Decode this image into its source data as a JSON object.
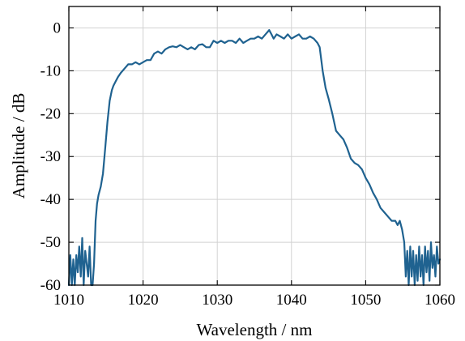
{
  "chart_data": {
    "type": "line",
    "title": "",
    "xlabel": "Wavelength / nm",
    "ylabel": "Amplitude / dB",
    "xlim": [
      1010,
      1060
    ],
    "ylim": [
      -60,
      5
    ],
    "xticks": [
      1010,
      1020,
      1030,
      1040,
      1050,
      1060
    ],
    "yticks": [
      0,
      -10,
      -20,
      -30,
      -40,
      -50,
      -60
    ],
    "xtick_labels": [
      "1010",
      "1020",
      "1030",
      "1040",
      "1050",
      "1060"
    ],
    "ytick_labels": [
      "0",
      "-10",
      "-20",
      "-30",
      "-40",
      "-50",
      "-60"
    ],
    "grid": true,
    "legend": "none",
    "colors": {
      "series": "#1f6290",
      "grid": "#d2d2d2",
      "axes": "#000000"
    },
    "series": [
      {
        "x": [
          1010.0,
          1010.2,
          1010.4,
          1010.6,
          1010.8,
          1011.0,
          1011.2,
          1011.4,
          1011.6,
          1011.8,
          1012.0,
          1012.2,
          1012.4,
          1012.6,
          1012.8,
          1013.0,
          1013.2,
          1013.4,
          1013.6,
          1013.8,
          1014.0,
          1014.3,
          1014.6,
          1014.9,
          1015.2,
          1015.5,
          1015.8,
          1016.0,
          1016.3,
          1016.6,
          1017.0,
          1017.5,
          1018.0,
          1018.5,
          1019.0,
          1019.5,
          1020.0,
          1020.5,
          1021.0,
          1021.5,
          1022.0,
          1022.5,
          1023.0,
          1023.5,
          1024.0,
          1024.5,
          1025.0,
          1025.5,
          1026.0,
          1026.5,
          1027.0,
          1027.5,
          1028.0,
          1028.5,
          1029.0,
          1029.5,
          1030.0,
          1030.5,
          1031.0,
          1031.5,
          1032.0,
          1032.5,
          1033.0,
          1033.5,
          1034.0,
          1034.5,
          1035.0,
          1035.5,
          1036.0,
          1036.5,
          1037.0,
          1037.3,
          1037.6,
          1038.0,
          1038.5,
          1039.0,
          1039.5,
          1040.0,
          1040.5,
          1041.0,
          1041.5,
          1042.0,
          1042.5,
          1043.0,
          1043.5,
          1043.8,
          1044.2,
          1044.6,
          1045.0,
          1045.5,
          1046.0,
          1046.5,
          1047.0,
          1047.5,
          1048.0,
          1048.5,
          1049.0,
          1049.5,
          1050.0,
          1050.5,
          1051.0,
          1051.5,
          1052.0,
          1052.5,
          1053.0,
          1053.5,
          1054.0,
          1054.3,
          1054.6,
          1054.9,
          1055.2,
          1055.4,
          1055.6,
          1055.8,
          1056.0,
          1056.2,
          1056.4,
          1056.6,
          1056.8,
          1057.0,
          1057.2,
          1057.4,
          1057.6,
          1057.8,
          1058.0,
          1058.2,
          1058.4,
          1058.6,
          1058.8,
          1059.0,
          1059.2,
          1059.4,
          1059.6,
          1059.8,
          1060.0
        ],
        "y": [
          -60,
          -53,
          -60,
          -54,
          -60,
          -53,
          -57,
          -51,
          -58,
          -49,
          -60,
          -52,
          -55,
          -58,
          -51,
          -60,
          -60,
          -55,
          -45,
          -41,
          -39,
          -37,
          -34,
          -28,
          -22,
          -17,
          -14.5,
          -13.5,
          -12.5,
          -11.5,
          -10.5,
          -9.5,
          -8.5,
          -8.5,
          -8.0,
          -8.5,
          -8.0,
          -7.5,
          -7.5,
          -6.0,
          -5.5,
          -6.0,
          -5.0,
          -4.5,
          -4.3,
          -4.5,
          -4.0,
          -4.5,
          -5.0,
          -4.5,
          -5.0,
          -4.0,
          -3.8,
          -4.5,
          -4.5,
          -3.0,
          -3.5,
          -3.0,
          -3.5,
          -3.0,
          -3.0,
          -3.5,
          -2.5,
          -3.5,
          -3.0,
          -2.5,
          -2.5,
          -2.0,
          -2.5,
          -1.5,
          -0.5,
          -1.5,
          -2.5,
          -1.5,
          -2.0,
          -2.5,
          -1.5,
          -2.5,
          -2.0,
          -1.5,
          -2.5,
          -2.5,
          -2.0,
          -2.5,
          -3.5,
          -4.5,
          -10.0,
          -14.0,
          -16.5,
          -20.0,
          -24.0,
          -25.0,
          -26.0,
          -28.0,
          -30.5,
          -31.5,
          -32.0,
          -33.0,
          -35.0,
          -36.5,
          -38.5,
          -40.0,
          -42.0,
          -43.0,
          -44.0,
          -45.0,
          -45.0,
          -46.0,
          -45.0,
          -47.0,
          -50.0,
          -58.0,
          -52.0,
          -60.0,
          -51.0,
          -58.0,
          -52.0,
          -60.0,
          -53.0,
          -59.0,
          -51.0,
          -58.0,
          -53.0,
          -60.0,
          -51.0,
          -57.0,
          -52.0,
          -59.0,
          -50.0,
          -56.0,
          -53.0,
          -58.0,
          -51.0,
          -55.0,
          -54.0
        ]
      }
    ]
  }
}
